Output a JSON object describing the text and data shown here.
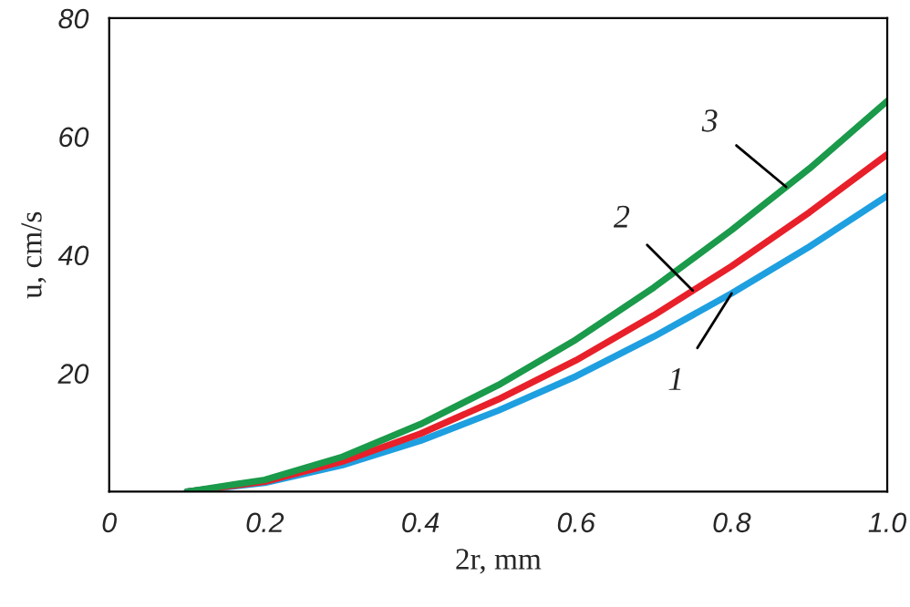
{
  "chart_data": {
    "type": "line",
    "xlabel": "2r, mm",
    "ylabel": "u, cm/s",
    "x": [
      0.1,
      0.2,
      0.3,
      0.4,
      0.5,
      0.6,
      0.7,
      0.8,
      0.9,
      1.0
    ],
    "series": [
      {
        "color": "#1e9fe0",
        "values": [
          0,
          1.5,
          4.5,
          8.6,
          13.7,
          19.5,
          26.2,
          33.5,
          41.4,
          50
        ]
      },
      {
        "color": "#e8202a",
        "values": [
          0,
          1.7,
          5.1,
          9.8,
          15.6,
          22.2,
          29.8,
          38.1,
          47.2,
          57
        ]
      },
      {
        "color": "#1a9a4a",
        "values": [
          0,
          2.0,
          5.9,
          11.4,
          18.0,
          25.7,
          34.5,
          44.2,
          54.6,
          66
        ]
      }
    ],
    "annotations": [
      {
        "text": "1",
        "x": 0.8,
        "y": 33.5
      },
      {
        "text": "2",
        "x": 0.75,
        "y": 34
      },
      {
        "text": "3",
        "x": 0.87,
        "y": 51.5
      }
    ],
    "xlim": [
      0,
      1.0
    ],
    "ylim": [
      0,
      80
    ],
    "xticks": [
      0,
      0.2,
      0.4,
      0.6,
      0.8,
      {
        "value": 1.0,
        "label": "1.0"
      }
    ],
    "yticks": [
      20,
      40,
      60,
      80
    ],
    "grid": false,
    "legend": false,
    "marker": "none",
    "line_style": "solid"
  }
}
